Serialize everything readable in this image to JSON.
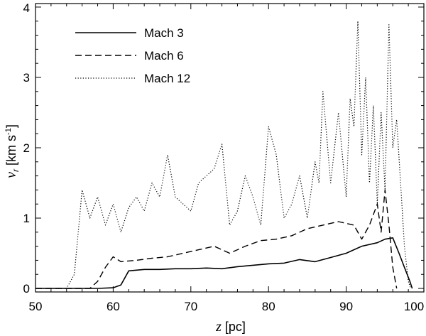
{
  "chart_data": {
    "type": "line",
    "title": "",
    "xlabel": {
      "var": "z",
      "unit": " [pc]"
    },
    "ylabel": {
      "var": "v",
      "sub": "r",
      "unit": " [km s",
      "sup": "-1",
      "close": "]"
    },
    "xlim": [
      50,
      100
    ],
    "ylim": [
      -0.05,
      4.05
    ],
    "xticks": [
      50,
      60,
      70,
      80,
      90,
      100
    ],
    "yticks": [
      0,
      1,
      2,
      3,
      4
    ],
    "grid": false,
    "legend_position": "top-left",
    "series": [
      {
        "name": "Mach 3",
        "style": "solid",
        "points": [
          [
            50,
            0
          ],
          [
            58,
            0
          ],
          [
            60,
            0.01
          ],
          [
            61,
            0.05
          ],
          [
            62,
            0.25
          ],
          [
            64,
            0.27
          ],
          [
            66,
            0.27
          ],
          [
            68,
            0.28
          ],
          [
            70,
            0.28
          ],
          [
            72,
            0.29
          ],
          [
            74,
            0.28
          ],
          [
            76,
            0.31
          ],
          [
            78,
            0.33
          ],
          [
            80,
            0.35
          ],
          [
            82,
            0.36
          ],
          [
            84,
            0.41
          ],
          [
            86,
            0.38
          ],
          [
            88,
            0.44
          ],
          [
            90,
            0.5
          ],
          [
            92,
            0.6
          ],
          [
            94,
            0.65
          ],
          [
            95,
            0.7
          ],
          [
            96,
            0.72
          ],
          [
            96.8,
            0.5
          ],
          [
            97.5,
            0.3
          ],
          [
            98.2,
            0.1
          ],
          [
            98.5,
            0
          ]
        ]
      },
      {
        "name": "Mach 6",
        "style": "dashed",
        "points": [
          [
            50,
            0
          ],
          [
            57,
            0
          ],
          [
            58,
            0.1
          ],
          [
            59,
            0.3
          ],
          [
            60,
            0.45
          ],
          [
            61,
            0.38
          ],
          [
            63,
            0.4
          ],
          [
            65,
            0.43
          ],
          [
            67,
            0.45
          ],
          [
            69,
            0.5
          ],
          [
            71,
            0.55
          ],
          [
            73,
            0.6
          ],
          [
            75,
            0.5
          ],
          [
            77,
            0.6
          ],
          [
            79,
            0.68
          ],
          [
            81,
            0.7
          ],
          [
            83,
            0.75
          ],
          [
            85,
            0.85
          ],
          [
            87,
            0.9
          ],
          [
            89,
            0.95
          ],
          [
            91,
            0.9
          ],
          [
            92,
            0.7
          ],
          [
            93,
            0.9
          ],
          [
            94,
            1.2
          ],
          [
            94.5,
            0.8
          ],
          [
            95,
            1.4
          ],
          [
            95.5,
            0.9
          ],
          [
            96,
            0.3
          ],
          [
            96.5,
            0
          ]
        ]
      },
      {
        "name": "Mach 12",
        "style": "dotted",
        "points": [
          [
            50,
            0
          ],
          [
            54,
            0
          ],
          [
            55,
            0.2
          ],
          [
            55.5,
            0.8
          ],
          [
            56,
            1.4
          ],
          [
            57,
            1.0
          ],
          [
            58,
            1.3
          ],
          [
            59,
            0.9
          ],
          [
            60,
            1.2
          ],
          [
            61,
            0.8
          ],
          [
            62,
            1.15
          ],
          [
            63,
            1.3
          ],
          [
            64,
            1.1
          ],
          [
            65,
            1.5
          ],
          [
            66,
            1.3
          ],
          [
            67,
            1.9
          ],
          [
            68,
            1.3
          ],
          [
            69,
            1.2
          ],
          [
            70,
            1.1
          ],
          [
            71,
            1.5
          ],
          [
            72,
            1.6
          ],
          [
            73,
            1.7
          ],
          [
            74,
            2.05
          ],
          [
            75,
            0.9
          ],
          [
            76,
            1.1
          ],
          [
            77,
            1.6
          ],
          [
            78,
            1.3
          ],
          [
            79,
            0.9
          ],
          [
            80,
            2.3
          ],
          [
            81,
            1.9
          ],
          [
            82,
            1.0
          ],
          [
            83,
            1.2
          ],
          [
            84,
            1.6
          ],
          [
            85,
            1.0
          ],
          [
            86,
            1.8
          ],
          [
            86.5,
            1.5
          ],
          [
            87,
            2.8
          ],
          [
            88,
            1.5
          ],
          [
            89,
            2.5
          ],
          [
            90,
            1.3
          ],
          [
            90.5,
            2.7
          ],
          [
            91,
            2.3
          ],
          [
            91.5,
            3.8
          ],
          [
            92,
            1.9
          ],
          [
            92.5,
            3.0
          ],
          [
            93,
            1.5
          ],
          [
            93.5,
            2.6
          ],
          [
            94,
            1.2
          ],
          [
            94.5,
            2.5
          ],
          [
            95,
            1.4
          ],
          [
            95.5,
            3.75
          ],
          [
            96,
            2.0
          ],
          [
            96.5,
            2.4
          ],
          [
            97,
            1.5
          ],
          [
            97.5,
            0.6
          ],
          [
            98,
            0.1
          ],
          [
            98.3,
            0
          ]
        ]
      }
    ]
  }
}
